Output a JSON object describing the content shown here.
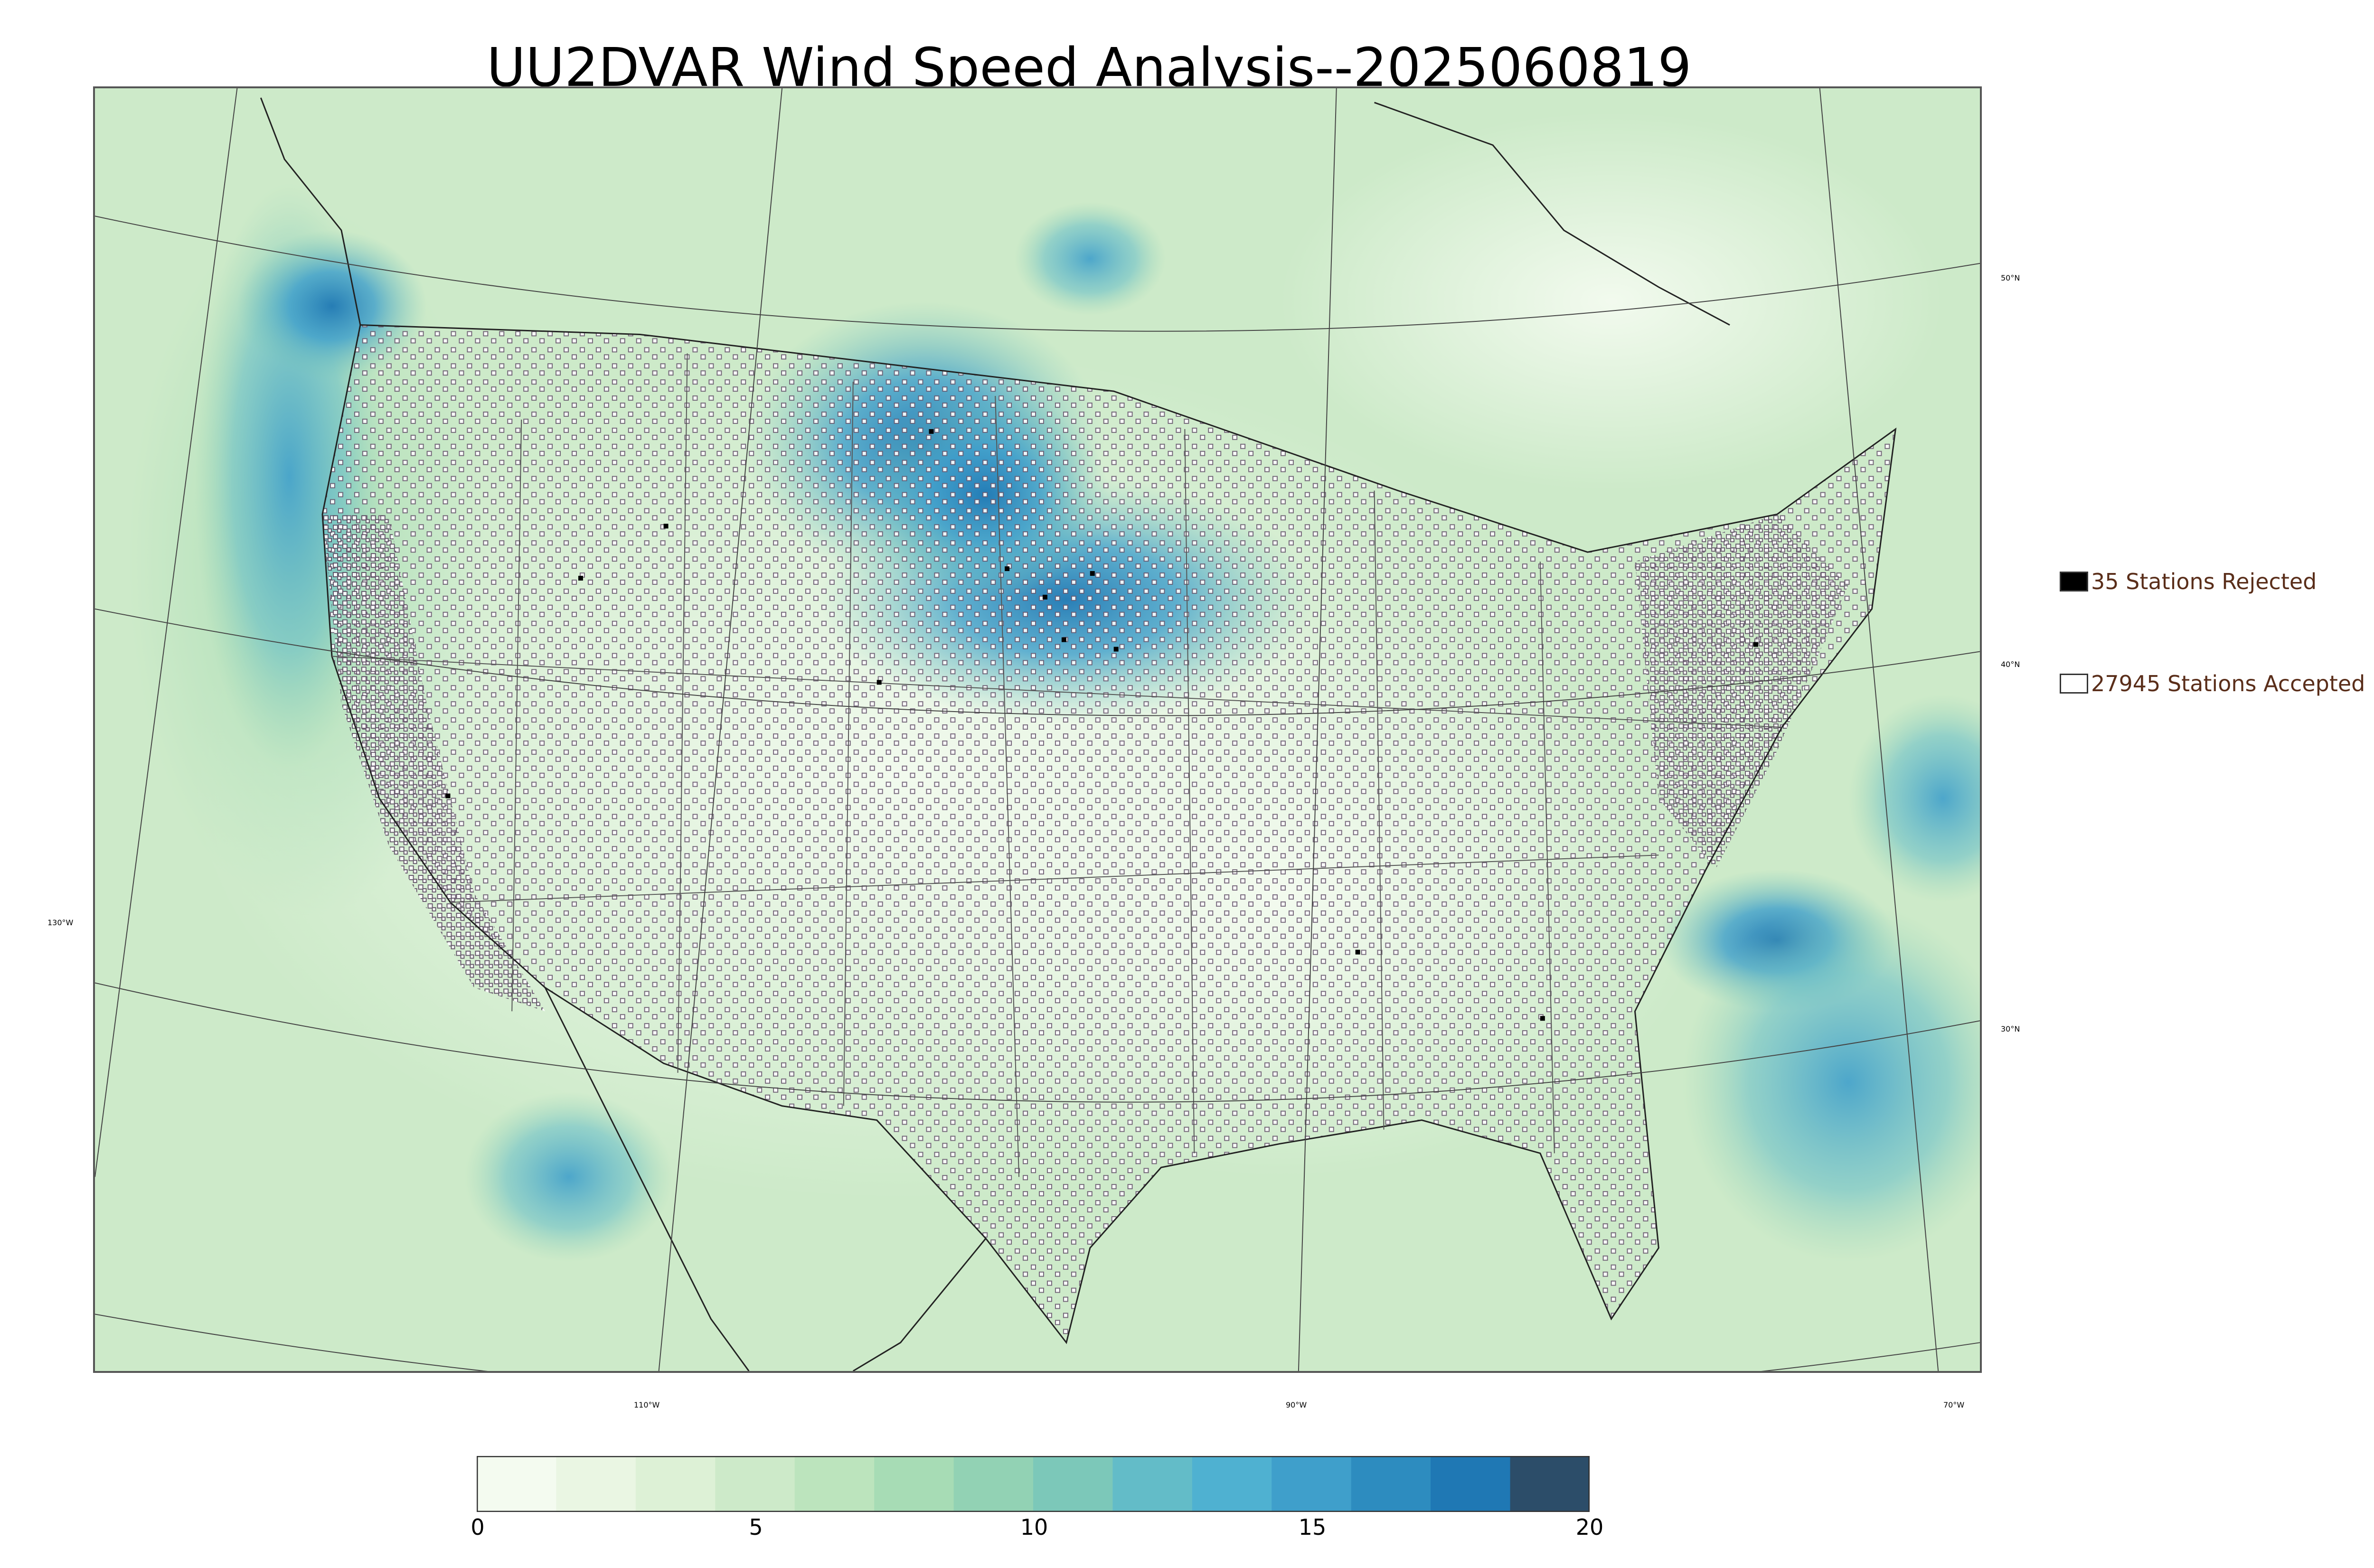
{
  "title": "UU2DVAR Wind Speed Analysis--2025060819",
  "legend": {
    "rejected": {
      "text": "35 Stations Rejected",
      "color": "#000000"
    },
    "accepted": {
      "text": "27945 Stations Accepted",
      "color": "#ffffff"
    }
  },
  "graticule": {
    "latitudes": [
      "50°N",
      "40°N",
      "30°N"
    ],
    "longitudes": [
      "130°W",
      "110°W",
      "90°W",
      "70°W"
    ]
  },
  "colorbar": {
    "ticks": [
      "0",
      "5",
      "10",
      "15",
      "20"
    ],
    "colors": [
      "#f4fbf0",
      "#eaf6e3",
      "#ddf1d6",
      "#cdeac9",
      "#bce4bd",
      "#a7dcb5",
      "#92d2b4",
      "#7cc8b9",
      "#63bcc8",
      "#4fb1d1",
      "#3f9fcb",
      "#2d8cbf",
      "#1f78b4",
      "#2c4d69"
    ]
  }
}
